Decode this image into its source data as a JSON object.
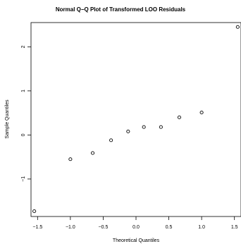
{
  "chart_data": {
    "type": "scatter",
    "title": "Normal Q−Q Plot of Transformed LOO Residuals",
    "xlabel": "Theoretical Quantiles",
    "ylabel": "Sample Quantiles",
    "xlim": [
      -1.6,
      1.6
    ],
    "ylim": [
      -1.85,
      2.55
    ],
    "grid": false,
    "x_ticks": [
      -1.5,
      -1.0,
      -0.5,
      0.0,
      0.5,
      1.0,
      1.5
    ],
    "x_tick_labels": [
      "−1.5",
      "−1.0",
      "−0.5",
      "0.0",
      "0.5",
      "1.0",
      "1.5"
    ],
    "y_ticks": [
      -1,
      0,
      1,
      2
    ],
    "y_tick_labels": [
      "−1",
      "0",
      "1",
      "2"
    ],
    "series": [
      {
        "points": [
          {
            "x": -1.55,
            "y": -1.73
          },
          {
            "x": -1.0,
            "y": -0.55
          },
          {
            "x": -0.66,
            "y": -0.41
          },
          {
            "x": -0.38,
            "y": -0.12
          },
          {
            "x": -0.12,
            "y": 0.08
          },
          {
            "x": 0.12,
            "y": 0.18
          },
          {
            "x": 0.38,
            "y": 0.18
          },
          {
            "x": 0.66,
            "y": 0.4
          },
          {
            "x": 1.0,
            "y": 0.51
          },
          {
            "x": 1.55,
            "y": 2.45
          }
        ]
      }
    ]
  }
}
